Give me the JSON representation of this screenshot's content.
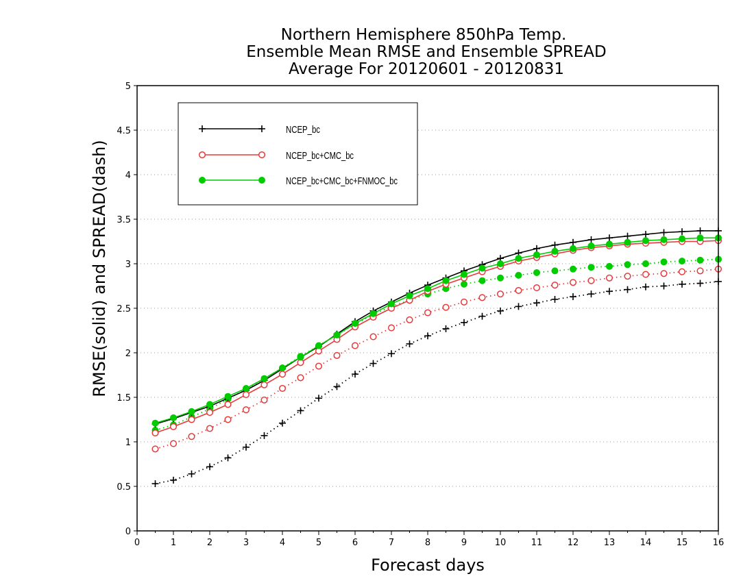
{
  "chart_data": {
    "type": "line",
    "title_lines": [
      "Northern Hemisphere 850hPa Temp.",
      "Ensemble Mean RMSE and Ensemble SPREAD",
      "Average For 20120601 - 20120831"
    ],
    "xlabel": "Forecast days",
    "ylabel": "RMSE(solid) and SPREAD(dash)",
    "xlim": [
      0,
      16
    ],
    "ylim": [
      0,
      5
    ],
    "x_ticks": [
      "0",
      "1",
      "2",
      "3",
      "4",
      "5",
      "6",
      "7",
      "8",
      "9",
      "10",
      "11",
      "12",
      "13",
      "14",
      "15",
      "16"
    ],
    "y_ticks": [
      "0",
      "0.5",
      "1",
      "1.5",
      "2",
      "2.5",
      "3",
      "3.5",
      "4",
      "4.5",
      "5"
    ],
    "grid": "horizontal dotted",
    "legend_position": "top-left",
    "x": [
      0.5,
      1,
      1.5,
      2,
      2.5,
      3,
      3.5,
      4,
      4.5,
      5,
      5.5,
      6,
      6.5,
      7,
      7.5,
      8,
      8.5,
      9,
      9.5,
      10,
      10.5,
      11,
      11.5,
      12,
      12.5,
      13,
      13.5,
      14,
      14.5,
      15,
      15.5,
      16
    ],
    "series": [
      {
        "name": "NCEP_bc",
        "metric": "RMSE",
        "line": "solid",
        "marker": "plus",
        "color": "#000000",
        "values": [
          1.2,
          1.26,
          1.33,
          1.4,
          1.49,
          1.58,
          1.69,
          1.82,
          1.95,
          2.07,
          2.21,
          2.35,
          2.47,
          2.57,
          2.67,
          2.76,
          2.84,
          2.92,
          2.99,
          3.06,
          3.12,
          3.17,
          3.21,
          3.24,
          3.27,
          3.29,
          3.31,
          3.33,
          3.35,
          3.36,
          3.37,
          3.37
        ]
      },
      {
        "name": "NCEP_bc+CMC_bc",
        "metric": "RMSE",
        "line": "solid",
        "marker": "open-circle",
        "color": "#e8393a",
        "values": [
          1.1,
          1.17,
          1.25,
          1.33,
          1.42,
          1.53,
          1.64,
          1.76,
          1.89,
          2.02,
          2.15,
          2.29,
          2.4,
          2.5,
          2.59,
          2.69,
          2.77,
          2.84,
          2.91,
          2.97,
          3.03,
          3.07,
          3.11,
          3.15,
          3.18,
          3.2,
          3.22,
          3.23,
          3.24,
          3.25,
          3.25,
          3.26
        ]
      },
      {
        "name": "NCEP_bc+CMC_bc+FNMOC_bc",
        "metric": "RMSE",
        "line": "solid",
        "marker": "filled-circle",
        "color": "#00cc00",
        "values": [
          1.21,
          1.27,
          1.34,
          1.42,
          1.51,
          1.6,
          1.71,
          1.83,
          1.95,
          2.08,
          2.2,
          2.33,
          2.44,
          2.55,
          2.64,
          2.72,
          2.81,
          2.88,
          2.95,
          3.0,
          3.06,
          3.1,
          3.14,
          3.17,
          3.2,
          3.22,
          3.24,
          3.26,
          3.27,
          3.28,
          3.29,
          3.29
        ]
      },
      {
        "name": "NCEP_bc",
        "metric": "SPREAD",
        "line": "dotted",
        "marker": "plus",
        "color": "#000000",
        "values": [
          0.53,
          0.57,
          0.64,
          0.72,
          0.82,
          0.94,
          1.07,
          1.21,
          1.35,
          1.49,
          1.62,
          1.76,
          1.88,
          1.99,
          2.1,
          2.19,
          2.27,
          2.34,
          2.41,
          2.47,
          2.52,
          2.56,
          2.6,
          2.63,
          2.66,
          2.69,
          2.71,
          2.74,
          2.75,
          2.77,
          2.78,
          2.8
        ]
      },
      {
        "name": "NCEP_bc+CMC_bc",
        "metric": "SPREAD",
        "line": "dotted",
        "marker": "open-circle",
        "color": "#e8393a",
        "values": [
          0.92,
          0.98,
          1.06,
          1.15,
          1.25,
          1.36,
          1.47,
          1.6,
          1.72,
          1.85,
          1.97,
          2.08,
          2.18,
          2.28,
          2.37,
          2.45,
          2.51,
          2.57,
          2.62,
          2.66,
          2.7,
          2.73,
          2.76,
          2.79,
          2.81,
          2.84,
          2.86,
          2.88,
          2.89,
          2.91,
          2.92,
          2.94
        ]
      },
      {
        "name": "NCEP_bc+CMC_bc+FNMOC_bc",
        "metric": "SPREAD",
        "line": "dotted",
        "marker": "filled-circle",
        "color": "#00cc00",
        "values": [
          1.13,
          1.19,
          1.28,
          1.37,
          1.48,
          1.59,
          1.71,
          1.83,
          1.96,
          2.08,
          2.2,
          2.32,
          2.43,
          2.52,
          2.59,
          2.66,
          2.72,
          2.77,
          2.81,
          2.84,
          2.87,
          2.9,
          2.92,
          2.94,
          2.96,
          2.97,
          2.99,
          3.0,
          3.02,
          3.03,
          3.04,
          3.05
        ]
      }
    ],
    "legend": [
      {
        "label": "NCEP_bc",
        "color": "#000000",
        "marker": "plus"
      },
      {
        "label": "NCEP_bc+CMC_bc",
        "color": "#e8393a",
        "marker": "open-circle"
      },
      {
        "label": "NCEP_bc+CMC_bc+FNMOC_bc",
        "color": "#00cc00",
        "marker": "filled-circle"
      }
    ]
  }
}
